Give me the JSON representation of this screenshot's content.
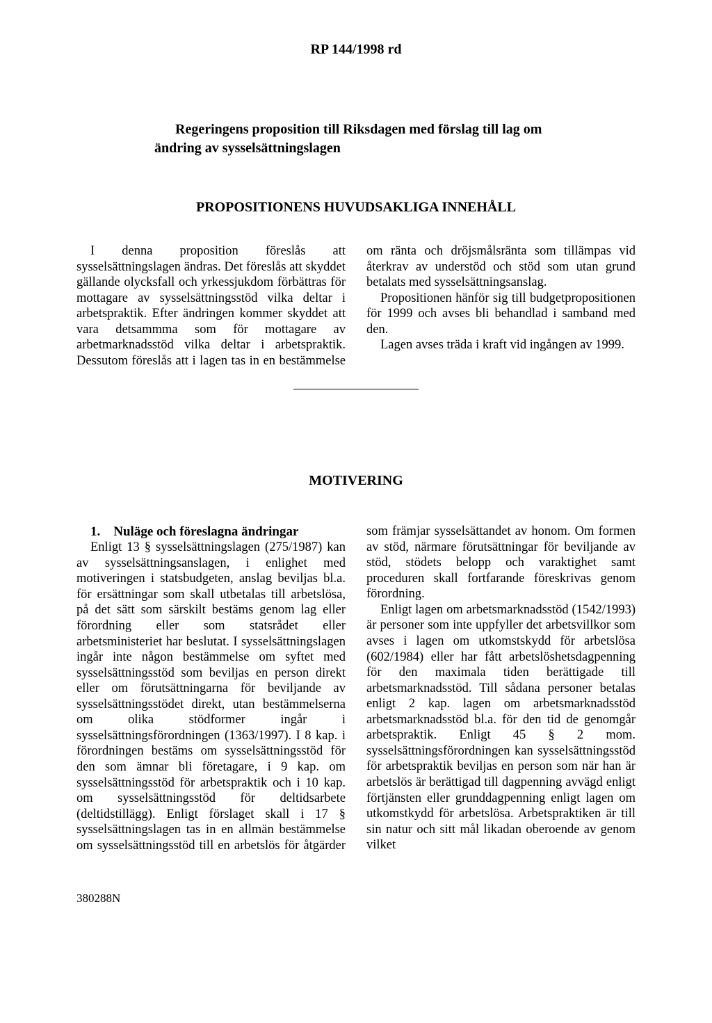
{
  "header": "RP 144/1998 rd",
  "proposition_title": "Regeringens proposition till Riksdagen med förslag till lag om ändring av sysselsättningslagen",
  "section1": {
    "heading": "PROPOSITIONENS HUVUDSAKLIGA INNEHÅLL",
    "body": "I denna proposition föreslås att sysselsättningslagen ändras. Det föreslås att skyddet gällande olycksfall och yrkessjukdom förbättras för mottagare av sysselsättningsstöd vilka deltar i arbetspraktik. Efter ändringen kommer skyddet att vara detsammma som för mottagare av arbetmarknadsstöd vilka deltar i arbetspraktik. Dessutom föreslås att i lagen tas in en bestämmelse om ränta och dröjsmålsränta som tillämpas vid återkrav av understöd och stöd som utan grund betalats med sysselsättningsanslag.",
    "body2": "Propositionen hänför sig till budgetpropositionen för 1999 och avses bli behandlad i samband med den.",
    "body3": "Lagen avses träda i kraft vid ingången av 1999."
  },
  "section2": {
    "heading": "MOTIVERING",
    "sub_heading": "1. Nuläge och föreslagna ändringar",
    "body": "Enligt 13 § sysselsättningslagen (275/1987) kan av sysselsättningsanslagen, i enlighet med motiveringen i statsbudgeten, anslag beviljas bl.a. för ersättningar som skall utbetalas till arbetslösa, på det sätt som särskilt bestäms genom lag eller förordning eller som statsrådet eller arbetsministeriet har beslutat. I sysselsättningslagen ingår inte någon bestämmelse om syftet med sysselsättningsstöd som beviljas en person direkt eller om förutsättningarna för beviljande av sysselsättningsstödet direkt, utan bestämmelserna om olika stödformer ingår i sysselsättningsförordningen (1363/1997). I 8 kap. i förordningen bestäms om sysselsättningsstöd för den som ämnar bli företagare, i 9 kap. om sysselsättningsstöd för arbetspraktik och i 10 kap. om sysselsättningsstöd för deltidsarbete (deltidstillägg). Enligt förslaget skall i 17 § sysselsättningslagen tas in en allmän bestämmelse om sysselsättningsstöd till en arbetslös för åtgärder som främjar sysselsättandet av honom. Om formen av stöd, närmare förutsättningar för beviljande av stöd, stödets belopp och varaktighet samt proceduren skall fortfarande föreskrivas genom förordning.",
    "body2": "Enligt lagen om arbetsmarknadsstöd (1542/1993) är personer som inte uppfyller det arbetsvillkor som avses i lagen om utkomstskydd för arbetslösa (602/1984) eller har fått arbetslöshetsdagpenning för den maximala tiden berättigade till arbetsmarknadsstöd. Till sådana personer betalas enligt 2 kap. lagen om arbetsmarknadsstöd arbetsmarknadsstöd bl.a. för den tid de genomgår arbetspraktik. Enligt 45 § 2 mom. sysselsättningsförordningen kan sysselsättningsstöd för arbetspraktik beviljas en person som när han är arbetslös är berättigad till dagpenning avvägd enligt förtjänsten eller grunddagpenning enligt lagen om utkomstkydd för arbetslösa. Arbetspraktiken är till sin natur och sitt mål likadan oberoende av genom vilket"
  },
  "footer": "380288N"
}
